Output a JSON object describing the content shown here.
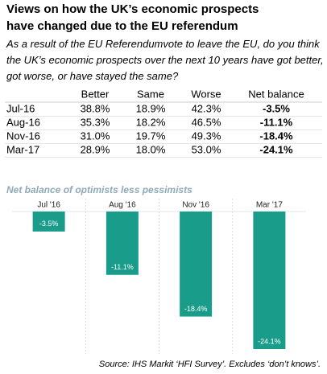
{
  "header": {
    "title": "Views on how the UK’s economic prospects have changed due to the EU  referendum",
    "subtitle": "As a result of the EU Referendumvote to leave the EU, do you think the UK’s economic prospects over the next 10 years have got better, got worse, or have stayed the same?"
  },
  "table": {
    "headers": [
      "Better",
      "Same",
      "Worse",
      "Net balance"
    ],
    "rows": [
      [
        "Jul-16",
        "38.8%",
        "18.9%",
        "42.3%",
        "-3.5%"
      ],
      [
        "Aug-16",
        "35.3%",
        "18.2%",
        "46.5%",
        "-11.1%"
      ],
      [
        "Nov-16",
        "31.0%",
        "19.7%",
        "49.3%",
        "-18.4%"
      ],
      [
        "Mar-17",
        "28.9%",
        "18.0%",
        "53.0%",
        "-24.1%"
      ]
    ]
  },
  "chart_data": {
    "type": "bar",
    "title": "Net balance of optimists less pessimists",
    "categories": [
      "Jul '16",
      "Aug '16",
      "Nov '16",
      "Mar '17"
    ],
    "values": [
      -3.5,
      -11.1,
      -18.4,
      -24.1
    ],
    "value_labels": [
      "-3.5%",
      "-11.1%",
      "-18.4%",
      "-24.1%"
    ],
    "color": "#1a9c8a"
  },
  "source": "Source: IHS Markit ‘HFI Survey’. Excludes ‘don’t knows’."
}
